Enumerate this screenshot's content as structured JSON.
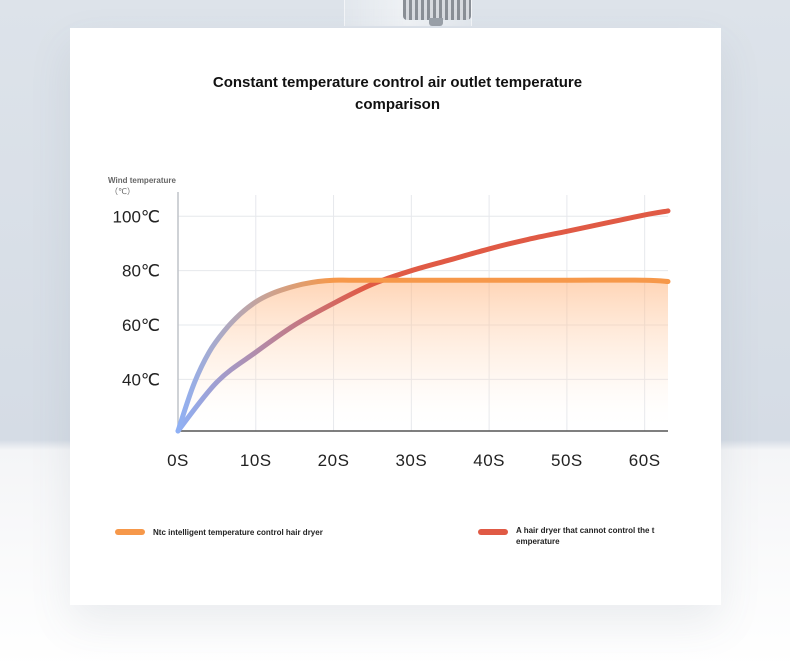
{
  "chart_data": {
    "type": "line",
    "title_lines": [
      "Constant temperature control air outlet temperature",
      "comparison"
    ],
    "ylabel_lines": [
      "Wind temperature",
      "（℃）"
    ],
    "xlabel": "",
    "x_ticks": [
      "0S",
      "10S",
      "20S",
      "30S",
      "40S",
      "50S",
      "60S"
    ],
    "y_ticks": [
      "40℃",
      "60℃",
      "80℃",
      "100℃"
    ],
    "xlim": [
      0,
      63
    ],
    "ylim": [
      21,
      106
    ],
    "grid": true,
    "legend_position": "bottom",
    "series": [
      {
        "name": "Ntc intelligent temperature control hair dryer",
        "color": "#f6984a",
        "area_fill": true,
        "x": [
          0,
          2,
          4,
          6,
          8,
          10,
          12,
          14,
          16,
          18,
          20,
          22,
          25,
          30,
          40,
          50,
          60,
          63
        ],
        "y": [
          21,
          38,
          50,
          58,
          64,
          68.5,
          71.5,
          73.5,
          75,
          76,
          76.5,
          76.5,
          76.5,
          76.5,
          76.5,
          76.5,
          76.5,
          76
        ]
      },
      {
        "name": "A hair dryer that cannot control the temperature",
        "color": "#e05a45",
        "x": [
          0,
          5,
          10,
          15,
          20,
          25,
          30,
          35,
          40,
          45,
          50,
          55,
          60,
          63
        ],
        "y": [
          21,
          39,
          50,
          60,
          68,
          75,
          80,
          84,
          88,
          91.5,
          94.5,
          97.5,
          100.5,
          102
        ]
      }
    ],
    "legend_labels": [
      "Ntc intelligent temperature control hair dryer",
      [
        "A hair dryer that cannot control the t",
        "emperature"
      ]
    ],
    "line_gradient_start_color": "#8fb0f5"
  }
}
